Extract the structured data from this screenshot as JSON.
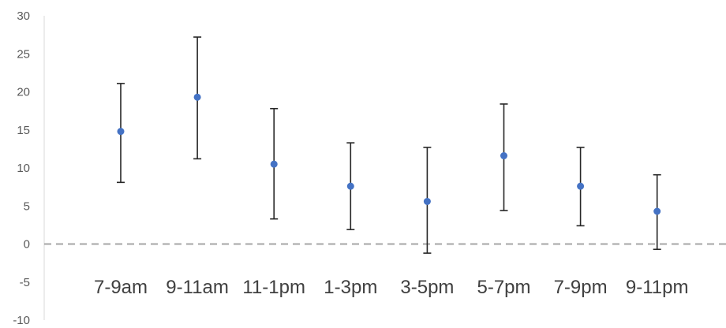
{
  "chart_data": {
    "type": "scatter",
    "categories": [
      "7-9am",
      "9-11am",
      "11-1pm",
      "1-3pm",
      "3-5pm",
      "5-7pm",
      "7-9pm",
      "9-11pm"
    ],
    "series": [
      {
        "values": [
          14.8,
          19.3,
          10.5,
          7.6,
          5.6,
          11.6,
          7.6,
          4.3
        ],
        "error_low": [
          8.1,
          11.2,
          3.3,
          1.9,
          -1.2,
          4.4,
          2.4,
          -0.7
        ],
        "error_high": [
          21.1,
          27.2,
          17.8,
          13.3,
          12.7,
          18.4,
          12.7,
          9.1
        ]
      }
    ],
    "ylim": [
      -10,
      30
    ],
    "yticks": [
      -10,
      -5,
      0,
      5,
      10,
      15,
      20,
      25,
      30
    ],
    "zero_line": "dashed",
    "grid": false,
    "colors": {
      "point": "#4472C4",
      "error_bar": "#262626",
      "axis": "#d9d9d9",
      "zero_line": "#a6a6a6"
    }
  }
}
